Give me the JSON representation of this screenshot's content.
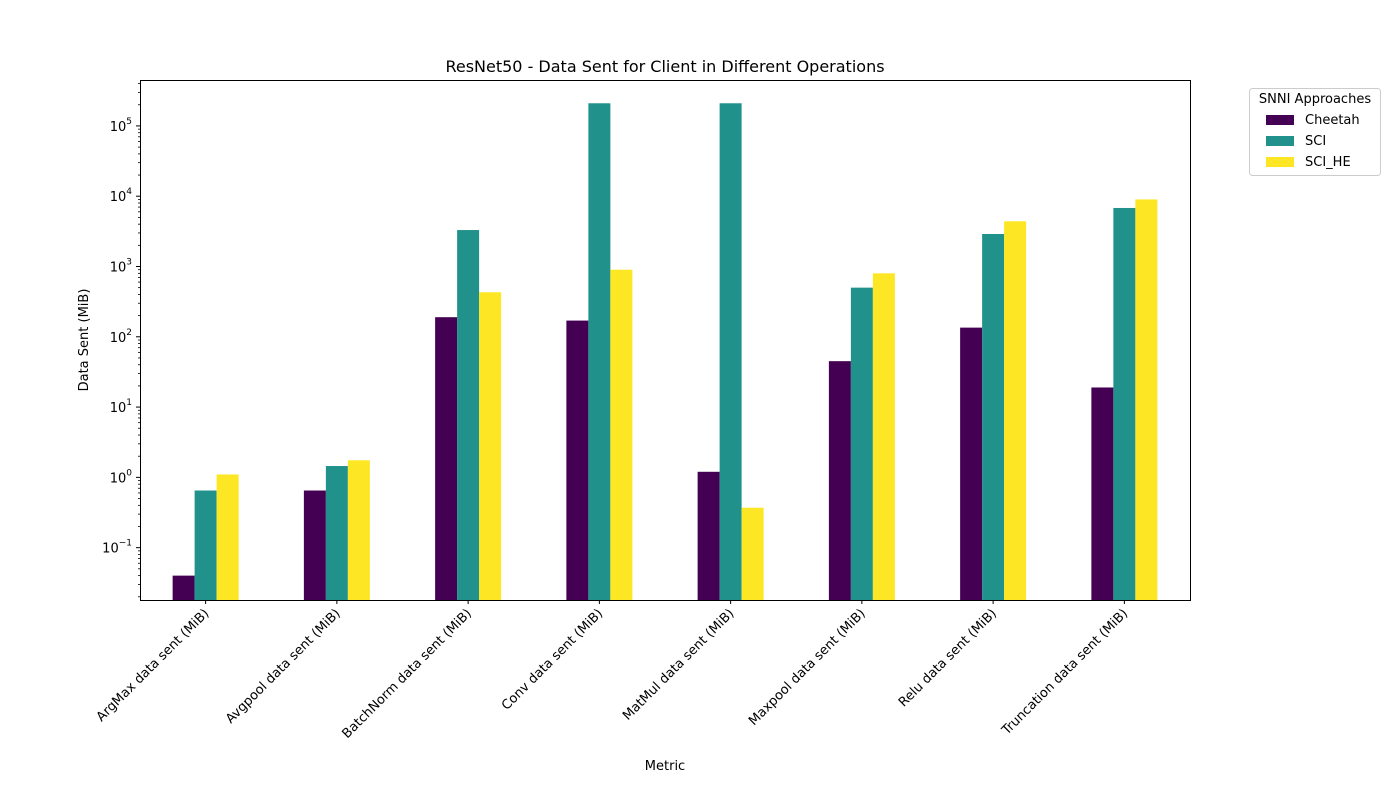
{
  "chart_data": {
    "type": "bar",
    "title": "ResNet50 - Data Sent for Client in Different Operations",
    "xlabel": "Metric",
    "ylabel": "Data Sent (MiB)",
    "yscale": "log",
    "ylim": [
      0.018,
      450000
    ],
    "yticks": [
      {
        "value": 0.1,
        "base": "10",
        "exp": "−1"
      },
      {
        "value": 1,
        "base": "10",
        "exp": "0"
      },
      {
        "value": 10,
        "base": "10",
        "exp": "1"
      },
      {
        "value": 100,
        "base": "10",
        "exp": "2"
      },
      {
        "value": 1000,
        "base": "10",
        "exp": "3"
      },
      {
        "value": 10000,
        "base": "10",
        "exp": "4"
      },
      {
        "value": 100000,
        "base": "10",
        "exp": "5"
      }
    ],
    "categories": [
      "ArgMax data sent (MiB)",
      "Avgpool data sent (MiB)",
      "BatchNorm data sent (MiB)",
      "Conv data sent (MiB)",
      "MatMul data sent (MiB)",
      "Maxpool data sent (MiB)",
      "Relu data sent (MiB)",
      "Truncation data sent (MiB)"
    ],
    "series": [
      {
        "name": "Cheetah",
        "color": "#440154",
        "values": [
          0.04,
          0.65,
          190,
          170,
          1.2,
          45,
          135,
          19
        ]
      },
      {
        "name": "SCI",
        "color": "#21918c",
        "values": [
          0.65,
          1.45,
          3300,
          210000,
          210000,
          500,
          2900,
          6800
        ]
      },
      {
        "name": "SCI_HE",
        "color": "#fde725",
        "values": [
          1.1,
          1.75,
          430,
          900,
          0.37,
          800,
          4400,
          9000
        ]
      }
    ],
    "grid": false,
    "legend": {
      "title": "SNNI Approaches",
      "position": "outside-top-right"
    }
  }
}
